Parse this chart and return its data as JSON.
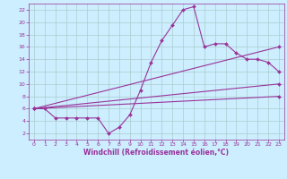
{
  "background_color": "#cceeff",
  "grid_color": "#aacccc",
  "line_color": "#993399",
  "marker": "D",
  "marker_size": 2,
  "linewidth": 0.8,
  "xlabel": "Windchill (Refroidissement éolien,°C)",
  "xlim": [
    -0.5,
    23.5
  ],
  "ylim": [
    1,
    23
  ],
  "xticks": [
    0,
    1,
    2,
    3,
    4,
    5,
    6,
    7,
    8,
    9,
    10,
    11,
    12,
    13,
    14,
    15,
    16,
    17,
    18,
    19,
    20,
    21,
    22,
    23
  ],
  "yticks": [
    2,
    4,
    6,
    8,
    10,
    12,
    14,
    16,
    18,
    20,
    22
  ],
  "curve_x": [
    0,
    1,
    2,
    3,
    4,
    5,
    6,
    7,
    8,
    9,
    10,
    11,
    12,
    13,
    14,
    15,
    16,
    17,
    18,
    19,
    20,
    21,
    22,
    23
  ],
  "curve_y": [
    6,
    6,
    4.5,
    4.5,
    4.5,
    4.5,
    4.5,
    2,
    3,
    5,
    9,
    13.5,
    17,
    19.5,
    22,
    22.5,
    16,
    16.5,
    16.5,
    15,
    14,
    14,
    13.5,
    12
  ],
  "line1": {
    "x": [
      0,
      23
    ],
    "y": [
      6,
      16
    ]
  },
  "line2": {
    "x": [
      0,
      23
    ],
    "y": [
      6,
      10
    ]
  },
  "line3": {
    "x": [
      0,
      23
    ],
    "y": [
      6,
      8
    ]
  }
}
